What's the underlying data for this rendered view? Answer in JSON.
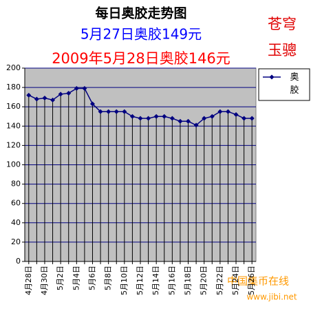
{
  "chart_data": {
    "type": "line",
    "title": "每日奥胶走势图",
    "subtitle": "5月27日奥胶149元",
    "subtitle2": "2009年5月28日奥胶146元",
    "side_text": [
      "苍穹",
      "玉骢"
    ],
    "watermark": [
      "中国集币在线",
      "www.jibi.net"
    ],
    "categories": [
      "4月28日",
      null,
      "4月30日",
      null,
      "5月2日",
      null,
      "5月4日",
      null,
      "5月6日",
      null,
      "5月8日",
      null,
      "5月10日",
      null,
      "5月12日",
      null,
      "5月14日",
      null,
      "5月16日",
      null,
      "5月18日",
      null,
      "5月20日",
      null,
      "5月22日",
      null,
      "5月24日",
      null,
      "5月26日"
    ],
    "series": [
      {
        "name": "奥胶",
        "color": "#000080",
        "values": [
          172,
          168,
          169,
          167,
          173,
          174,
          179,
          179,
          163,
          155,
          155,
          155,
          155,
          150,
          148,
          148,
          150,
          150,
          148,
          145,
          145,
          141,
          148,
          150,
          155,
          155,
          152,
          148,
          148
        ]
      }
    ],
    "ylim": [
      0,
      200
    ],
    "yticks": [
      0,
      20,
      40,
      60,
      80,
      100,
      120,
      140,
      160,
      180,
      200
    ],
    "grid": true,
    "drop_lines": true,
    "legend": "right",
    "plot_background": "#c0c0c0"
  }
}
